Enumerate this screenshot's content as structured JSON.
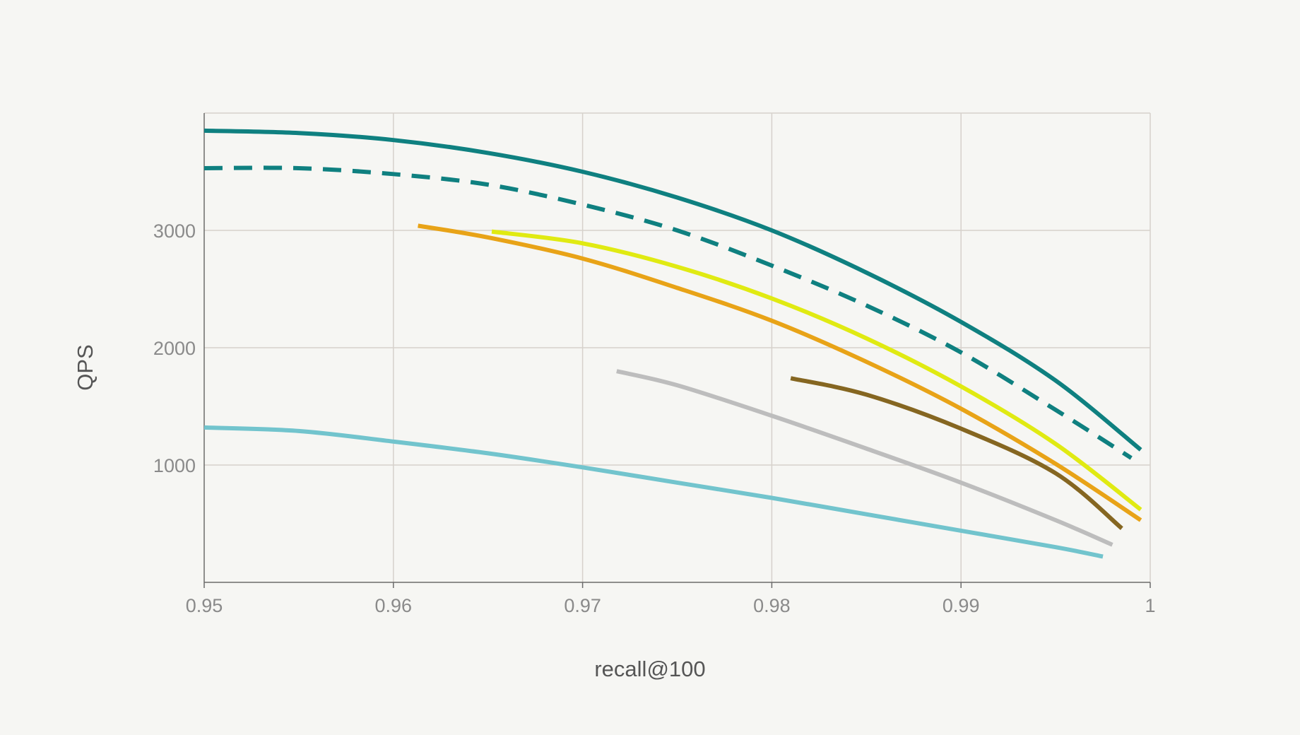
{
  "chart_data": {
    "type": "line",
    "title": "",
    "xlabel": "recall@100",
    "ylabel": "QPS",
    "xlim": [
      0.95,
      1.0
    ],
    "ylim": [
      0,
      4000
    ],
    "xticks": [
      0.95,
      0.96,
      0.97,
      0.98,
      0.99,
      1.0
    ],
    "xtick_labels": [
      "0.95",
      "0.96",
      "0.97",
      "0.98",
      "0.99",
      "1"
    ],
    "yticks": [
      1000,
      2000,
      3000
    ],
    "ytick_labels": [
      "1000",
      "2000",
      "3000"
    ],
    "grid": true,
    "legend": "none",
    "series": [
      {
        "color": "#0f8080",
        "dashed": false,
        "x": [
          0.95,
          0.955,
          0.96,
          0.965,
          0.97,
          0.975,
          0.98,
          0.985,
          0.99,
          0.995,
          0.9995
        ],
        "y": [
          3850,
          3830,
          3770,
          3660,
          3500,
          3280,
          3000,
          2640,
          2220,
          1720,
          1130
        ]
      },
      {
        "color": "#0f8080",
        "dashed": true,
        "x": [
          0.95,
          0.955,
          0.96,
          0.965,
          0.97,
          0.975,
          0.98,
          0.985,
          0.99,
          0.995,
          0.999
        ],
        "y": [
          3530,
          3530,
          3480,
          3390,
          3220,
          3000,
          2700,
          2360,
          1960,
          1470,
          1060
        ]
      },
      {
        "color": "#e8a317",
        "dashed": false,
        "x": [
          0.9613,
          0.965,
          0.97,
          0.975,
          0.98,
          0.985,
          0.99,
          0.995,
          0.9995
        ],
        "y": [
          3040,
          2940,
          2760,
          2510,
          2230,
          1880,
          1480,
          1010,
          530
        ]
      },
      {
        "color": "#e0ea12",
        "dashed": false,
        "x": [
          0.9652,
          0.97,
          0.975,
          0.98,
          0.985,
          0.99,
          0.995,
          0.9995
        ],
        "y": [
          2990,
          2890,
          2690,
          2420,
          2080,
          1670,
          1180,
          620
        ]
      },
      {
        "color": "#bdbdbd",
        "dashed": false,
        "x": [
          0.9718,
          0.975,
          0.98,
          0.985,
          0.99,
          0.995,
          0.998
        ],
        "y": [
          1800,
          1680,
          1420,
          1140,
          850,
          530,
          320
        ]
      },
      {
        "color": "#856621",
        "dashed": false,
        "x": [
          0.981,
          0.985,
          0.99,
          0.995,
          0.9985
        ],
        "y": [
          1740,
          1600,
          1310,
          930,
          460
        ]
      },
      {
        "color": "#72c4cd",
        "dashed": false,
        "x": [
          0.95,
          0.955,
          0.96,
          0.965,
          0.97,
          0.975,
          0.98,
          0.985,
          0.99,
          0.995,
          0.9975
        ],
        "y": [
          1320,
          1290,
          1200,
          1100,
          980,
          850,
          720,
          580,
          440,
          300,
          220
        ]
      }
    ]
  }
}
